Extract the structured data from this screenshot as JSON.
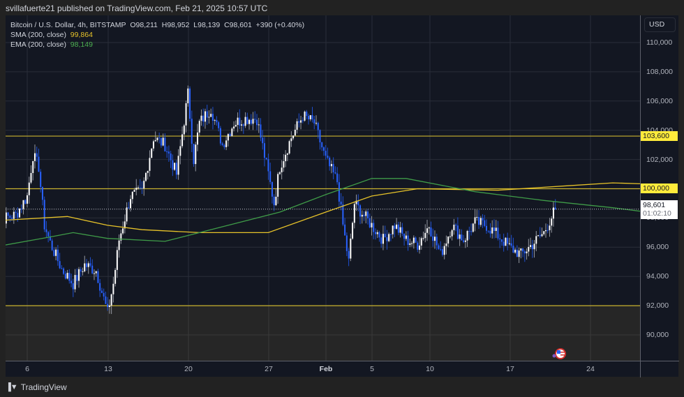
{
  "header": {
    "published": "svillafuerte21 published on TradingView.com, Feb 21, 2025 10:57 UTC"
  },
  "legend": {
    "symbol": "Bitcoin / U.S. Dollar, 4h, BITSTAMP",
    "open": "O98,211",
    "high": "H98,952",
    "low": "L98,139",
    "close": "C98,601",
    "change": "+390 (+0.40%)",
    "sma_label": "SMA (200, close)",
    "sma_value": "99,864",
    "ema_label": "EMA (200, close)",
    "ema_value": "98,149"
  },
  "axis": {
    "currency": "USD",
    "ticks": [
      "110,000",
      "108,000",
      "106,000",
      "104,000",
      "102,000",
      "100,000",
      "98,000",
      "96,000",
      "94,000",
      "92,000",
      "90,000"
    ],
    "tags": {
      "resistance_high": "103,600",
      "resistance_low": "100,000",
      "last_price": "98,601",
      "countdown": "01:02:10"
    }
  },
  "time_axis": {
    "ticks": [
      "6",
      "13",
      "20",
      "27",
      "Feb",
      "5",
      "10",
      "17",
      "24"
    ]
  },
  "footer": {
    "brand": "TradingView"
  },
  "colors": {
    "up": "#ffffff",
    "down": "#2962ff",
    "sma": "#e6c229",
    "ema": "#3f9b48",
    "hline": "#c9b32f",
    "background": "#131722"
  },
  "chart_data": {
    "type": "candlestick",
    "title": "Bitcoin / U.S. Dollar, 4h, BITSTAMP",
    "xlabel": "",
    "ylabel": "USD",
    "ylim": [
      88500,
      111500
    ],
    "x_ticks": [
      "Jan 6",
      "Jan 13",
      "Jan 20",
      "Jan 27",
      "Feb 1",
      "Feb 5",
      "Feb 10",
      "Feb 17",
      "Feb 24"
    ],
    "horizontal_lines": [
      103600,
      100000,
      92000
    ],
    "last_price": 98601,
    "keypoints_close": [
      [
        "Jan 3",
        97800
      ],
      [
        "Jan 4",
        98000
      ],
      [
        "Jan 5",
        98200
      ],
      [
        "Jan 6",
        99500
      ],
      [
        "Jan 6.5",
        102300
      ],
      [
        "Jan 7",
        101500
      ],
      [
        "Jan 7.5",
        97500
      ],
      [
        "Jan 8",
        96300
      ],
      [
        "Jan 9",
        94500
      ],
      [
        "Jan 10",
        93500
      ],
      [
        "Jan 11",
        94800
      ],
      [
        "Jan 12",
        94400
      ],
      [
        "Jan 13",
        91500
      ],
      [
        "Jan 13.5",
        93500
      ],
      [
        "Jan 14",
        96500
      ],
      [
        "Jan 15",
        99500
      ],
      [
        "Jan 16",
        99800
      ],
      [
        "Jan 17",
        103500
      ],
      [
        "Jan 18",
        103000
      ],
      [
        "Jan 19",
        101000
      ],
      [
        "Jan 20",
        106500
      ],
      [
        "Jan 20.5",
        102000
      ],
      [
        "Jan 21",
        104500
      ],
      [
        "Jan 22",
        105500
      ],
      [
        "Jan 23",
        103000
      ],
      [
        "Jan 24",
        104500
      ],
      [
        "Jan 25",
        104800
      ],
      [
        "Jan 26",
        104800
      ],
      [
        "Jan 27",
        101000
      ],
      [
        "Jan 27.5",
        99000
      ],
      [
        "Jan 28",
        101500
      ],
      [
        "Jan 29",
        103500
      ],
      [
        "Jan 30",
        105000
      ],
      [
        "Jan 31",
        104500
      ],
      [
        "Feb 1",
        102000
      ],
      [
        "Feb 2",
        100500
      ],
      [
        "Feb 2.5",
        97500
      ],
      [
        "Feb 3",
        95000
      ],
      [
        "Feb 3.5",
        99000
      ],
      [
        "Feb 4",
        98500
      ],
      [
        "Feb 5",
        97500
      ],
      [
        "Feb 6",
        96500
      ],
      [
        "Feb 7",
        97500
      ],
      [
        "Feb 8",
        96500
      ],
      [
        "Feb 9",
        96200
      ],
      [
        "Feb 10",
        97500
      ],
      [
        "Feb 11",
        95500
      ],
      [
        "Feb 12",
        97500
      ],
      [
        "Feb 13",
        96500
      ],
      [
        "Feb 14",
        97700
      ],
      [
        "Feb 15",
        97500
      ],
      [
        "Feb 16",
        96800
      ],
      [
        "Feb 17",
        96000
      ],
      [
        "Feb 18",
        95500
      ],
      [
        "Feb 19",
        96200
      ],
      [
        "Feb 20",
        97000
      ],
      [
        "Feb 21",
        98601
      ]
    ],
    "series": [
      {
        "name": "SMA (200, close)",
        "last": 99864
      },
      {
        "name": "EMA (200, close)",
        "last": 98149
      }
    ]
  }
}
